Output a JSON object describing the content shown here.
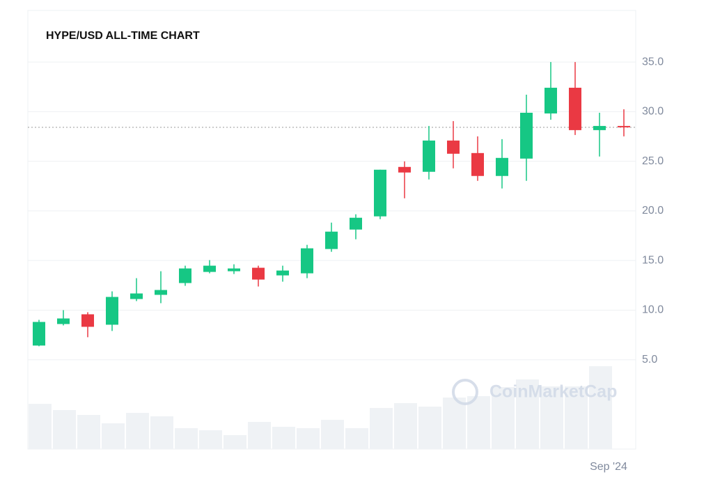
{
  "chart_data": {
    "type": "candlestick",
    "title": "HYPE/USD ALL-TIME CHART",
    "watermark": "CoinMarketCap",
    "categories": [
      null,
      null,
      null,
      null,
      null,
      null,
      null,
      null,
      null,
      null,
      null,
      null,
      null,
      null,
      null,
      null,
      null,
      null,
      null,
      null,
      null,
      null,
      null,
      "Sep '24",
      null
    ],
    "series": [
      {
        "up_color": "#16c784",
        "down_color": "#ea3943",
        "open": [
          6.43,
          8.6,
          9.58,
          8.53,
          11.12,
          11.54,
          12.73,
          13.85,
          13.92,
          14.27,
          13.5,
          13.71,
          16.16,
          18.12,
          19.45,
          24.43,
          23.94,
          27.09,
          25.83,
          23.52,
          25.27,
          29.82,
          32.41,
          28.14,
          28.56
        ],
        "high": [
          9.02,
          10.0,
          9.79,
          11.89,
          13.22,
          13.92,
          14.48,
          15.04,
          14.62,
          14.48,
          14.48,
          16.58,
          18.82,
          19.66,
          24.15,
          24.99,
          28.56,
          29.05,
          27.51,
          27.23,
          31.71,
          35.0,
          35.0,
          29.89,
          30.24
        ],
        "low": [
          6.36,
          8.46,
          7.27,
          7.9,
          10.91,
          10.7,
          12.45,
          13.71,
          13.64,
          12.38,
          12.87,
          13.22,
          15.88,
          17.14,
          19.17,
          21.27,
          23.17,
          24.29,
          23.03,
          22.26,
          23.03,
          29.19,
          27.65,
          25.48,
          27.51
        ],
        "close": [
          8.81,
          9.16,
          8.32,
          11.33,
          11.68,
          12.03,
          14.2,
          14.48,
          14.2,
          13.08,
          13.99,
          16.23,
          17.91,
          19.31,
          24.15,
          23.87,
          27.09,
          25.76,
          23.52,
          25.34,
          29.89,
          32.41,
          28.14,
          28.56,
          28.42
        ]
      }
    ],
    "volume": {
      "color": "#eff2f5",
      "values": [
        65,
        56,
        49,
        37,
        52,
        47,
        30,
        27,
        20,
        39,
        32,
        30,
        42,
        30,
        59,
        66,
        61,
        74,
        76,
        89,
        100,
        90,
        90,
        119,
        null
      ],
      "vlim": [
        0,
        130
      ]
    },
    "last_price": 28.42,
    "ylim": [
      -4,
      40.2
    ],
    "yticks": [
      {
        "value": 5,
        "label": "5.0"
      },
      {
        "value": 10,
        "label": "10.0"
      },
      {
        "value": 15,
        "label": "15.0"
      },
      {
        "value": 20,
        "label": "20.0"
      },
      {
        "value": 25,
        "label": "25.0"
      },
      {
        "value": 30,
        "label": "30.0"
      },
      {
        "value": 35,
        "label": "35.0"
      }
    ],
    "grid": true
  }
}
